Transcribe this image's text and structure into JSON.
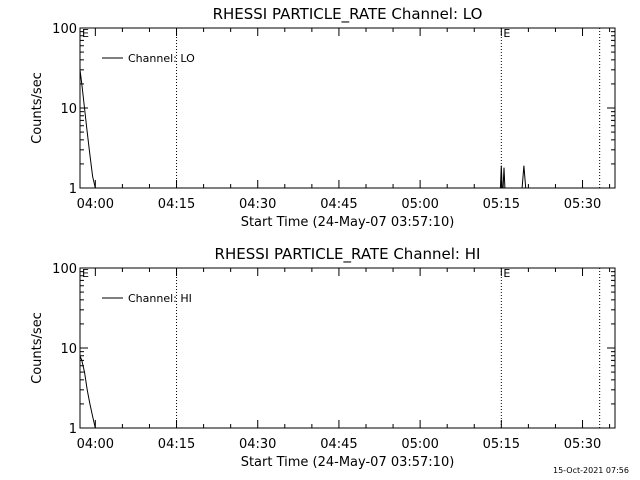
{
  "footer": {
    "timestamp": "15-Oct-2021 07:56"
  },
  "chart_data": [
    {
      "type": "line",
      "title": "RHESSI PARTICLE_RATE Channel: LO",
      "xlabel": "Start Time (24-May-07 03:57:10)",
      "ylabel": "Counts/sec",
      "yscale": "log",
      "ylim": [
        1,
        100
      ],
      "xlim": [
        "03:57:10",
        "05:36:00"
      ],
      "y_tick_labels": [
        "1",
        "10",
        "100"
      ],
      "x_tick_labels": [
        "04:00",
        "04:15",
        "04:30",
        "04:45",
        "05:00",
        "05:15",
        "05:30"
      ],
      "legend": {
        "position": "top-left",
        "entries": [
          "Channel: LO"
        ]
      },
      "markers": [
        {
          "label": "E",
          "time": "03:57:10"
        },
        {
          "label": "",
          "time": "04:15:00"
        },
        {
          "label": "E",
          "time": "05:15:00"
        },
        {
          "label": "",
          "time": "05:33:10"
        }
      ],
      "series": [
        {
          "name": "Channel: LO",
          "segments": [
            {
              "x": [
                "03:57:10",
                "03:57:30",
                "03:58:00",
                "03:58:30",
                "03:59:00",
                "03:59:30",
                "04:00:00"
              ],
              "y": [
                30,
                20,
                10,
                5,
                2.6,
                1.4,
                1.0
              ]
            },
            {
              "x": [
                "05:14:50",
                "05:15:00",
                "05:15:10"
              ],
              "y": [
                1.0,
                1.9,
                1.0
              ]
            },
            {
              "x": [
                "05:15:20",
                "05:15:30",
                "05:15:40"
              ],
              "y": [
                1.0,
                1.8,
                1.0
              ]
            },
            {
              "x": [
                "05:18:50",
                "05:19:10",
                "05:19:30"
              ],
              "y": [
                1.0,
                1.9,
                1.0
              ]
            }
          ]
        }
      ]
    },
    {
      "type": "line",
      "title": "RHESSI PARTICLE_RATE Channel: HI",
      "xlabel": "Start Time (24-May-07 03:57:10)",
      "ylabel": "Counts/sec",
      "yscale": "log",
      "ylim": [
        1,
        100
      ],
      "xlim": [
        "03:57:10",
        "05:36:00"
      ],
      "y_tick_labels": [
        "1",
        "10",
        "100"
      ],
      "x_tick_labels": [
        "04:00",
        "04:15",
        "04:30",
        "04:45",
        "05:00",
        "05:15",
        "05:30"
      ],
      "legend": {
        "position": "top-left",
        "entries": [
          "Channel: HI"
        ]
      },
      "markers": [
        {
          "label": "E",
          "time": "03:57:10"
        },
        {
          "label": "",
          "time": "04:15:00"
        },
        {
          "label": "E",
          "time": "05:15:00"
        },
        {
          "label": "",
          "time": "05:33:10"
        }
      ],
      "series": [
        {
          "name": "Channel: HI",
          "segments": [
            {
              "x": [
                "03:57:10",
                "03:57:30",
                "03:58:00",
                "03:58:30",
                "03:59:00",
                "03:59:30",
                "04:00:00"
              ],
              "y": [
                8,
                7,
                5,
                3,
                2,
                1.4,
                1.0
              ]
            }
          ]
        }
      ]
    }
  ]
}
